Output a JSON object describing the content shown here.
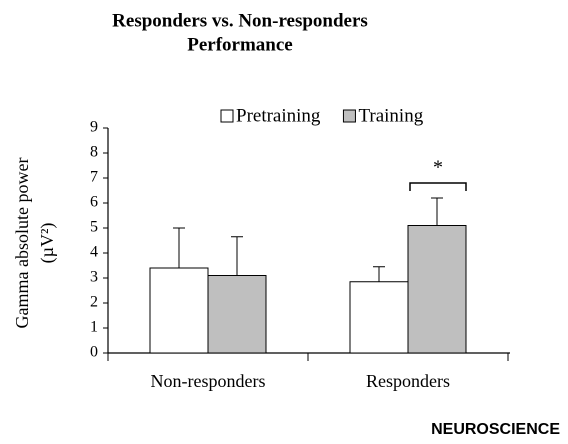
{
  "chart_data": {
    "type": "bar",
    "title": [
      "Responders vs. Non-responders",
      "Performance"
    ],
    "ylabel": [
      "Gamma absolute power",
      "(µV²)"
    ],
    "categories": [
      "Non-responders",
      "Responders"
    ],
    "series": [
      {
        "name": "Pretraining",
        "color": "#ffffff",
        "values": [
          3.4,
          2.85
        ],
        "errors": [
          1.6,
          0.6
        ]
      },
      {
        "name": "Training",
        "color": "#bfbfbf",
        "values": [
          3.1,
          5.1
        ],
        "errors": [
          1.55,
          1.1
        ]
      }
    ],
    "ylim": [
      0,
      9
    ],
    "yticks": [
      0,
      1,
      2,
      3,
      4,
      5,
      6,
      7,
      8,
      9
    ],
    "grid": false,
    "legend": "top",
    "annotation": "*",
    "watermark": "NEUROSCIENCE"
  }
}
